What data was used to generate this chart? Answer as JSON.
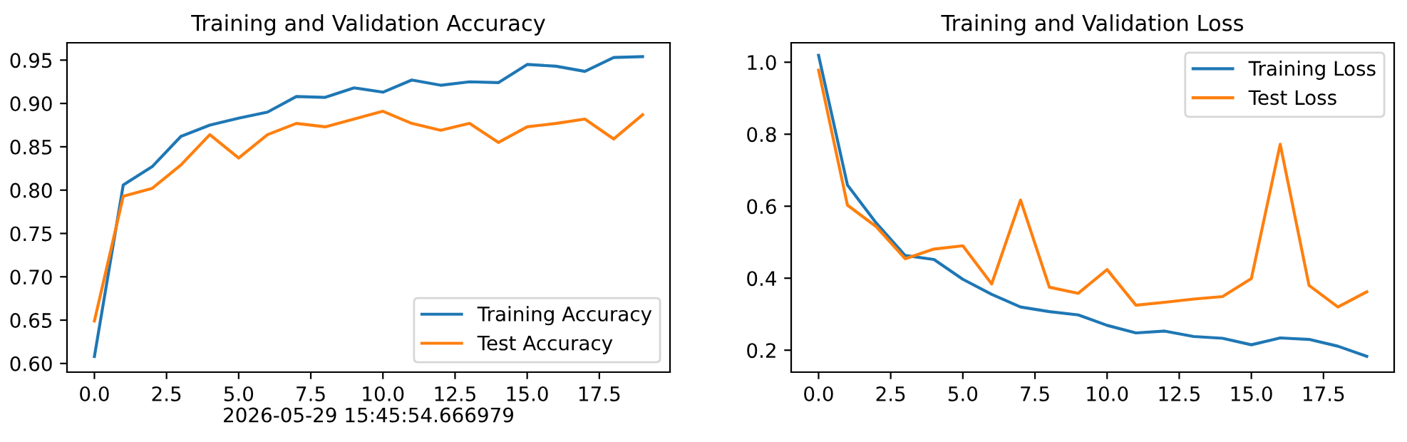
{
  "chart_data": [
    {
      "type": "line",
      "title": "Training and Validation Accuracy",
      "xlabel": "2026-05-29 15:45:54.666979",
      "x": [
        0,
        1,
        2,
        3,
        4,
        5,
        6,
        7,
        8,
        9,
        10,
        11,
        12,
        13,
        14,
        15,
        16,
        17,
        18,
        19
      ],
      "series": [
        {
          "name": "Training Accuracy",
          "color": "#1f77b4",
          "values": [
            0.608,
            0.806,
            0.827,
            0.862,
            0.875,
            0.883,
            0.89,
            0.908,
            0.907,
            0.918,
            0.913,
            0.927,
            0.921,
            0.925,
            0.924,
            0.945,
            0.943,
            0.937,
            0.953,
            0.954
          ]
        },
        {
          "name": "Test Accuracy",
          "color": "#ff7f0e",
          "values": [
            0.649,
            0.793,
            0.802,
            0.829,
            0.864,
            0.837,
            0.864,
            0.877,
            0.873,
            0.882,
            0.891,
            0.877,
            0.869,
            0.877,
            0.855,
            0.873,
            0.877,
            0.882,
            0.859,
            0.887
          ]
        }
      ],
      "xlim": [
        -0.95,
        19.95
      ],
      "xticks": [
        {
          "value": 0.0,
          "label": "0.0"
        },
        {
          "value": 2.5,
          "label": "2.5"
        },
        {
          "value": 5.0,
          "label": "5.0"
        },
        {
          "value": 7.5,
          "label": "7.5"
        },
        {
          "value": 10.0,
          "label": "10.0"
        },
        {
          "value": 12.5,
          "label": "12.5"
        },
        {
          "value": 15.0,
          "label": "15.0"
        },
        {
          "value": 17.5,
          "label": "17.5"
        }
      ],
      "ylim": [
        0.59,
        0.97
      ],
      "yticks": [
        {
          "value": 0.6,
          "label": "0.60"
        },
        {
          "value": 0.65,
          "label": "0.65"
        },
        {
          "value": 0.7,
          "label": "0.70"
        },
        {
          "value": 0.75,
          "label": "0.75"
        },
        {
          "value": 0.8,
          "label": "0.80"
        },
        {
          "value": 0.85,
          "label": "0.85"
        },
        {
          "value": 0.9,
          "label": "0.90"
        },
        {
          "value": 0.95,
          "label": "0.95"
        }
      ],
      "legend": "bottom right"
    },
    {
      "type": "line",
      "title": "Training and Validation Loss",
      "x": [
        0,
        1,
        2,
        3,
        4,
        5,
        6,
        7,
        8,
        9,
        10,
        11,
        12,
        13,
        14,
        15,
        16,
        17,
        18,
        19
      ],
      "series": [
        {
          "name": "Training Loss",
          "color": "#1f77b4",
          "values": [
            1.019,
            0.659,
            0.553,
            0.463,
            0.452,
            0.397,
            0.355,
            0.32,
            0.307,
            0.298,
            0.269,
            0.248,
            0.253,
            0.238,
            0.233,
            0.215,
            0.234,
            0.23,
            0.211,
            0.183
          ]
        },
        {
          "name": "Test Loss",
          "color": "#ff7f0e",
          "values": [
            0.978,
            0.603,
            0.543,
            0.454,
            0.481,
            0.49,
            0.384,
            0.617,
            0.375,
            0.358,
            0.424,
            0.325,
            0.333,
            0.342,
            0.349,
            0.399,
            0.772,
            0.38,
            0.32,
            0.362
          ]
        }
      ],
      "xlim": [
        -0.95,
        19.95
      ],
      "xticks": [
        {
          "value": 0.0,
          "label": "0.0"
        },
        {
          "value": 2.5,
          "label": "2.5"
        },
        {
          "value": 5.0,
          "label": "5.0"
        },
        {
          "value": 7.5,
          "label": "7.5"
        },
        {
          "value": 10.0,
          "label": "10.0"
        },
        {
          "value": 12.5,
          "label": "12.5"
        },
        {
          "value": 15.0,
          "label": "15.0"
        },
        {
          "value": 17.5,
          "label": "17.5"
        }
      ],
      "ylim": [
        0.139,
        1.054
      ],
      "yticks": [
        {
          "value": 0.2,
          "label": "0.2"
        },
        {
          "value": 0.4,
          "label": "0.4"
        },
        {
          "value": 0.6,
          "label": "0.6"
        },
        {
          "value": 0.8,
          "label": "0.8"
        },
        {
          "value": 1.0,
          "label": "1.0"
        }
      ],
      "legend": "top right"
    }
  ]
}
